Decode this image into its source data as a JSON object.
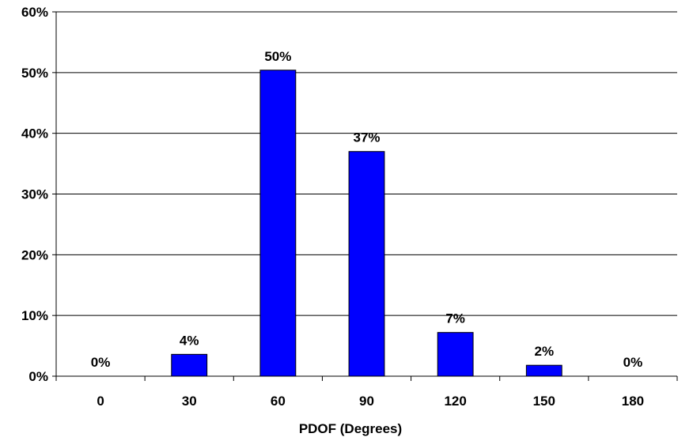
{
  "chart_data": {
    "type": "bar",
    "categories": [
      "0",
      "30",
      "60",
      "90",
      "120",
      "150",
      "180"
    ],
    "values": [
      0,
      3.6,
      50.4,
      37.0,
      7.2,
      1.8,
      0
    ],
    "data_labels": [
      "0%",
      "4%",
      "50%",
      "37%",
      "7%",
      "2%",
      "0%"
    ],
    "title": "",
    "xlabel": "PDOF (Degrees)",
    "ylabel": "",
    "ylim": [
      0,
      60
    ],
    "yticks": [
      0,
      10,
      20,
      30,
      40,
      50,
      60
    ],
    "ytick_labels": [
      "0%",
      "10%",
      "20%",
      "30%",
      "40%",
      "50%",
      "60%"
    ],
    "grid": true,
    "legend": "none",
    "colors": {
      "bar_fill": "#0000FF",
      "bar_stroke": "#000000",
      "grid": "#000000",
      "axis": "#000000"
    }
  }
}
